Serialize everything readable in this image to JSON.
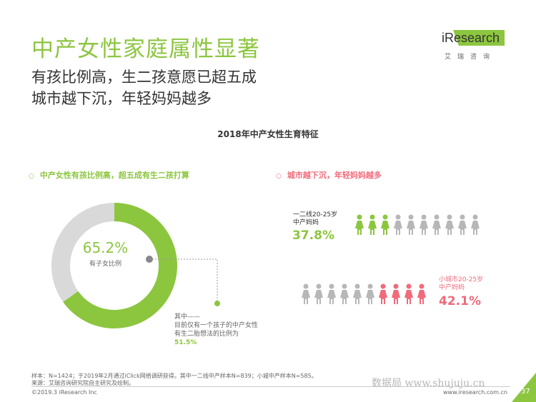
{
  "header": {
    "title": "中产女性家庭属性显著",
    "subtitle_line1": "有孩比例高，生二孩意愿已超五成",
    "subtitle_line2": "城市越下沉，年轻妈妈越多"
  },
  "logo": {
    "brand": "iResearch",
    "brand_cn": "艾瑞咨询"
  },
  "chart_data": [
    {
      "type": "pie",
      "title": "2018年中产女性生育特征",
      "section_label": "中产女性有孩比例高，超五成有生二孩打算",
      "value_label": "65.2%",
      "center_caption": "有子女比例",
      "values": [
        65.2,
        34.8
      ],
      "colors": [
        "#8cc63f",
        "#d9d9d9"
      ],
      "annotation_lines": [
        "其中——",
        "目前仅有一个孩子的中产女性",
        "有生二胎想法的比例为"
      ],
      "annotation_value": "51.5%",
      "annotation_percent": 51.5
    },
    {
      "type": "pictogram",
      "section_label": "城市越下沉，年轻妈妈越多",
      "groups": [
        {
          "label_line1": "一二线20-25岁",
          "label_line2": "中产妈妈",
          "value_label": "37.8%",
          "value": 37.8,
          "highlight_count": 3,
          "total_icons": 10,
          "color": "#8cc63f"
        },
        {
          "label_line1": "小城市20-25岁",
          "label_line2": "中产妈妈",
          "value_label": "42.1%",
          "value": 42.1,
          "highlight_count": 4,
          "total_icons": 10,
          "color": "#f06b7b"
        }
      ],
      "base_color": "#b7b7b7"
    }
  ],
  "footer": {
    "note1": "样本：N=1424；于2019年2月通过iClick网络调研获得。其中一二线中产样本N=839；小城中产样本N=585。",
    "note2": "来源：艾瑞咨询研究院自主研究及绘制。",
    "copyright": "©2019.3 iResearch Inc",
    "site": "www.iresearch.com.cn",
    "watermark": "数据局 www.shujuju.cn",
    "page": "37"
  }
}
